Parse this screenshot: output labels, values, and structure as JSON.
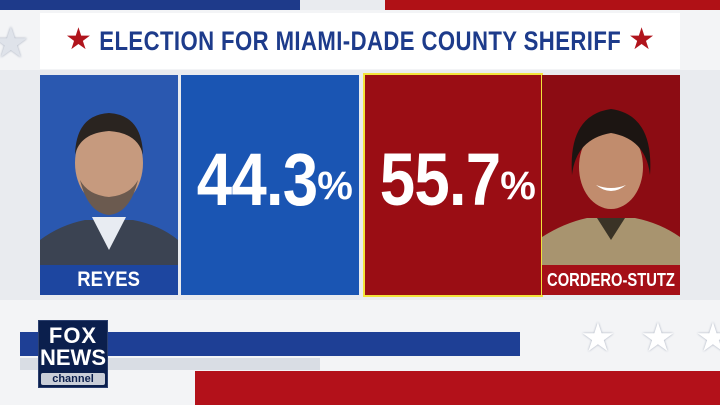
{
  "title": "ELECTION FOR MIAMI-DADE COUNTY SHERIFF",
  "candidates": [
    {
      "name": "REYES",
      "percent": "44.3",
      "percent_sign": "%",
      "color": "#1a55b3",
      "photo": "candidate-photo-reyes"
    },
    {
      "name": "CORDERO-STUTZ",
      "percent": "55.7",
      "percent_sign": "%",
      "color": "#9a0d14",
      "photo": "candidate-photo-cordero-stutz"
    }
  ],
  "network_logo": {
    "line1": "FOX",
    "line2": "NEWS",
    "line3": "channel"
  },
  "icons": {
    "title_star": "star-icon",
    "decorative_star": "star-icon"
  },
  "colors": {
    "title_blue": "#1d3b8b",
    "accent_red": "#b0141c",
    "highlight_border": "#f2e23a"
  }
}
